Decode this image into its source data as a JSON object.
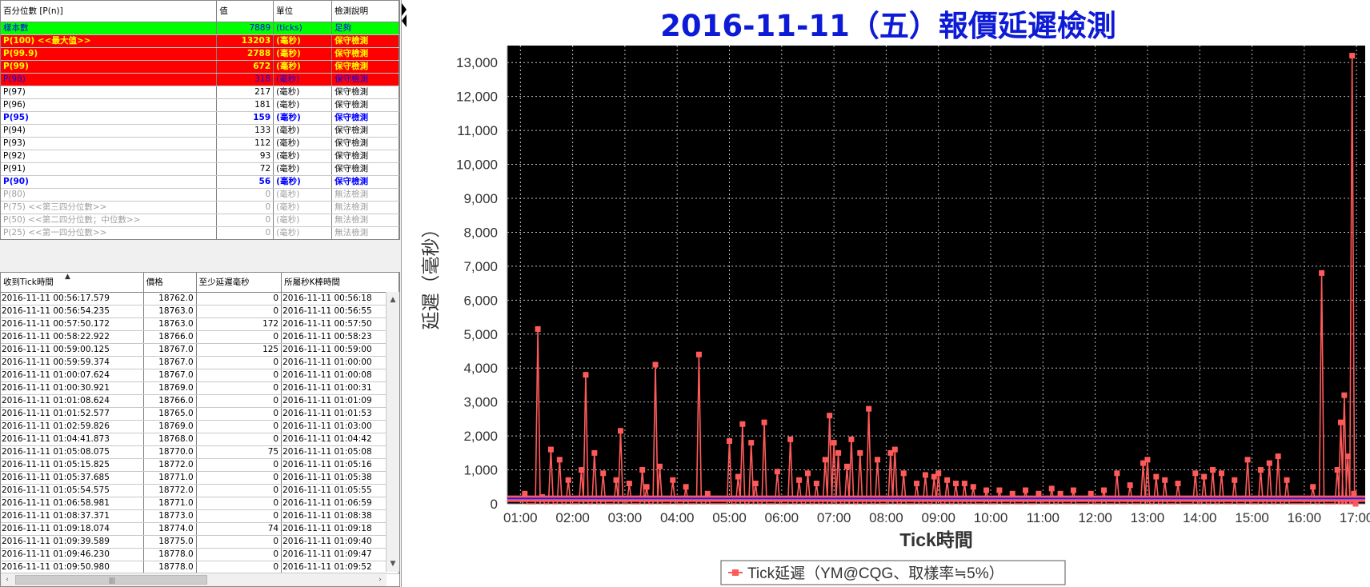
{
  "percentile_table": {
    "headers": [
      "百分位數 [P(n)]",
      "值",
      "單位",
      "檢測說明"
    ],
    "rows": [
      {
        "style": "green",
        "label": "樣本數",
        "value": "7889",
        "unit": "(ticks)",
        "note": "足夠"
      },
      {
        "style": "red",
        "label": "P(100)  <<最大值>>",
        "value": "13203",
        "unit": "(毫秒)",
        "note": "保守檢測"
      },
      {
        "style": "red",
        "label": "P(99.9)",
        "value": "2788",
        "unit": "(毫秒)",
        "note": "保守檢測"
      },
      {
        "style": "red",
        "label": "P(99)",
        "value": "672",
        "unit": "(毫秒)",
        "note": "保守檢測"
      },
      {
        "style": "redblue",
        "label": "P(98)",
        "value": "318",
        "unit": "(毫秒)",
        "note": "保守檢測"
      },
      {
        "style": "plain",
        "label": "P(97)",
        "value": "217",
        "unit": "(毫秒)",
        "note": "保守檢測"
      },
      {
        "style": "plain",
        "label": "P(96)",
        "value": "181",
        "unit": "(毫秒)",
        "note": "保守檢測"
      },
      {
        "style": "blue",
        "label": "P(95)",
        "value": "159",
        "unit": "(毫秒)",
        "note": "保守檢測"
      },
      {
        "style": "plain",
        "label": "P(94)",
        "value": "133",
        "unit": "(毫秒)",
        "note": "保守檢測"
      },
      {
        "style": "plain",
        "label": "P(93)",
        "value": "112",
        "unit": "(毫秒)",
        "note": "保守檢測"
      },
      {
        "style": "plain",
        "label": "P(92)",
        "value": "93",
        "unit": "(毫秒)",
        "note": "保守檢測"
      },
      {
        "style": "plain",
        "label": "P(91)",
        "value": "72",
        "unit": "(毫秒)",
        "note": "保守檢測"
      },
      {
        "style": "blue",
        "label": "P(90)",
        "value": "56",
        "unit": "(毫秒)",
        "note": "保守檢測"
      },
      {
        "style": "gray",
        "label": "P(80)",
        "value": "0",
        "unit": "(毫秒)",
        "note": "無法檢測"
      },
      {
        "style": "gray",
        "label": "P(75)  <<第三四分位數>>",
        "value": "0",
        "unit": "(毫秒)",
        "note": "無法檢測"
      },
      {
        "style": "gray",
        "label": "P(50)  <<第二四分位數；中位數>>",
        "value": "0",
        "unit": "(毫秒)",
        "note": "無法檢測"
      },
      {
        "style": "gray",
        "label": "P(25)  <<第一四分位數>>",
        "value": "0",
        "unit": "(毫秒)",
        "note": "無法檢測"
      }
    ]
  },
  "tick_table": {
    "headers": [
      "收到Tick時間",
      "價格",
      "至少延遲毫秒",
      "所屬秒K棒時間"
    ],
    "rows": [
      [
        "2016-11-11 00:56:17.579",
        "18762.0",
        "0",
        "2016-11-11 00:56:18"
      ],
      [
        "2016-11-11 00:56:54.235",
        "18763.0",
        "0",
        "2016-11-11 00:56:55"
      ],
      [
        "2016-11-11 00:57:50.172",
        "18763.0",
        "172",
        "2016-11-11 00:57:50"
      ],
      [
        "2016-11-11 00:58:22.922",
        "18766.0",
        "0",
        "2016-11-11 00:58:23"
      ],
      [
        "2016-11-11 00:59:00.125",
        "18767.0",
        "125",
        "2016-11-11 00:59:00"
      ],
      [
        "2016-11-11 00:59:59.374",
        "18767.0",
        "0",
        "2016-11-11 01:00:00"
      ],
      [
        "2016-11-11 01:00:07.624",
        "18767.0",
        "0",
        "2016-11-11 01:00:08"
      ],
      [
        "2016-11-11 01:00:30.921",
        "18769.0",
        "0",
        "2016-11-11 01:00:31"
      ],
      [
        "2016-11-11 01:01:08.624",
        "18766.0",
        "0",
        "2016-11-11 01:01:09"
      ],
      [
        "2016-11-11 01:01:52.577",
        "18765.0",
        "0",
        "2016-11-11 01:01:53"
      ],
      [
        "2016-11-11 01:02:59.826",
        "18769.0",
        "0",
        "2016-11-11 01:03:00"
      ],
      [
        "2016-11-11 01:04:41.873",
        "18768.0",
        "0",
        "2016-11-11 01:04:42"
      ],
      [
        "2016-11-11 01:05:08.075",
        "18770.0",
        "75",
        "2016-11-11 01:05:08"
      ],
      [
        "2016-11-11 01:05:15.825",
        "18772.0",
        "0",
        "2016-11-11 01:05:16"
      ],
      [
        "2016-11-11 01:05:37.685",
        "18771.0",
        "0",
        "2016-11-11 01:05:38"
      ],
      [
        "2016-11-11 01:05:54.575",
        "18772.0",
        "0",
        "2016-11-11 01:05:55"
      ],
      [
        "2016-11-11 01:06:58.981",
        "18771.0",
        "0",
        "2016-11-11 01:06:59"
      ],
      [
        "2016-11-11 01:08:37.371",
        "18773.0",
        "0",
        "2016-11-11 01:08:38"
      ],
      [
        "2016-11-11 01:09:18.074",
        "18774.0",
        "74",
        "2016-11-11 01:09:18"
      ],
      [
        "2016-11-11 01:09:39.589",
        "18775.0",
        "0",
        "2016-11-11 01:09:40"
      ],
      [
        "2016-11-11 01:09:46.230",
        "18778.0",
        "0",
        "2016-11-11 01:09:47"
      ],
      [
        "2016-11-11 01:09:50.980",
        "18778.0",
        "0",
        "2016-11-11 01:09:52"
      ]
    ]
  },
  "scroll_icons": {
    "up": "▲",
    "down": "▼",
    "left": "‹",
    "right": "›",
    "thumb": "|||"
  },
  "colors": {
    "title": "#0d1bd6",
    "series": "#ff5a5a",
    "reference_line": "#1a1aff",
    "plot_bg": "#000000",
    "grid": "#bfbfbf"
  },
  "chart_data": {
    "type": "line",
    "title": "2016-11-11（五）報價延遲檢測",
    "xlabel": "Tick時間",
    "ylabel": "延遲（毫秒）",
    "xlim": [
      "00:45",
      "17:10"
    ],
    "ylim": [
      0,
      13500
    ],
    "xticks": [
      "01:00",
      "02:00",
      "03:00",
      "04:00",
      "05:00",
      "06:00",
      "07:00",
      "08:00",
      "09:00",
      "10:00",
      "11:00",
      "12:00",
      "13:00",
      "14:00",
      "15:00",
      "16:00",
      "17:00"
    ],
    "yticks": [
      0,
      1000,
      2000,
      3000,
      4000,
      5000,
      6000,
      7000,
      8000,
      9000,
      10000,
      11000,
      12000,
      13000
    ],
    "ytick_labels": [
      "0",
      "1,000",
      "2,000",
      "3,000",
      "4,000",
      "5,000",
      "6,000",
      "7,000",
      "8,000",
      "9,000",
      "10,000",
      "11,000",
      "12,000",
      "13,000"
    ],
    "grid": true,
    "legend": "bottom-center",
    "reference_line": {
      "value": 159
    },
    "series": [
      {
        "name": "Tick延遲（YM@CQG、取樣率≒5%）",
        "x": [
          "01:05",
          "01:20",
          "01:25",
          "01:35",
          "01:45",
          "01:55",
          "02:10",
          "02:15",
          "02:25",
          "02:35",
          "02:50",
          "02:55",
          "03:05",
          "03:20",
          "03:25",
          "03:35",
          "03:40",
          "03:55",
          "04:10",
          "04:25",
          "04:35",
          "05:00",
          "05:10",
          "05:15",
          "05:25",
          "05:30",
          "05:40",
          "05:55",
          "06:10",
          "06:20",
          "06:30",
          "06:40",
          "06:50",
          "06:55",
          "07:00",
          "07:05",
          "07:15",
          "07:20",
          "07:30",
          "07:40",
          "07:50",
          "08:05",
          "08:10",
          "08:20",
          "08:35",
          "08:45",
          "08:55",
          "09:00",
          "09:10",
          "09:20",
          "09:30",
          "09:40",
          "09:55",
          "10:10",
          "10:25",
          "10:40",
          "10:55",
          "11:10",
          "11:20",
          "11:35",
          "11:55",
          "12:10",
          "12:25",
          "12:40",
          "12:55",
          "13:00",
          "13:10",
          "13:20",
          "13:35",
          "13:55",
          "14:05",
          "14:15",
          "14:25",
          "14:40",
          "14:55",
          "15:10",
          "15:20",
          "15:30",
          "15:40",
          "16:10",
          "16:20",
          "16:38",
          "16:42",
          "16:46",
          "16:50",
          "16:55",
          "16:57",
          "16:59"
        ],
        "values": [
          300,
          5150,
          200,
          1600,
          1300,
          700,
          1000,
          3800,
          1500,
          900,
          700,
          2150,
          600,
          1000,
          500,
          4100,
          1100,
          700,
          500,
          4400,
          300,
          1850,
          800,
          2350,
          1800,
          600,
          2400,
          950,
          1900,
          700,
          900,
          600,
          1300,
          2600,
          1800,
          1500,
          1100,
          1900,
          1500,
          2800,
          1300,
          1500,
          1600,
          900,
          600,
          850,
          800,
          900,
          700,
          600,
          600,
          500,
          400,
          400,
          300,
          400,
          300,
          450,
          300,
          400,
          300,
          400,
          900,
          550,
          1200,
          1300,
          800,
          700,
          600,
          900,
          800,
          1000,
          900,
          700,
          1300,
          1000,
          1200,
          1400,
          700,
          500,
          6800,
          1000,
          2400,
          3200,
          1400,
          13203,
          300,
          0
        ]
      }
    ]
  }
}
